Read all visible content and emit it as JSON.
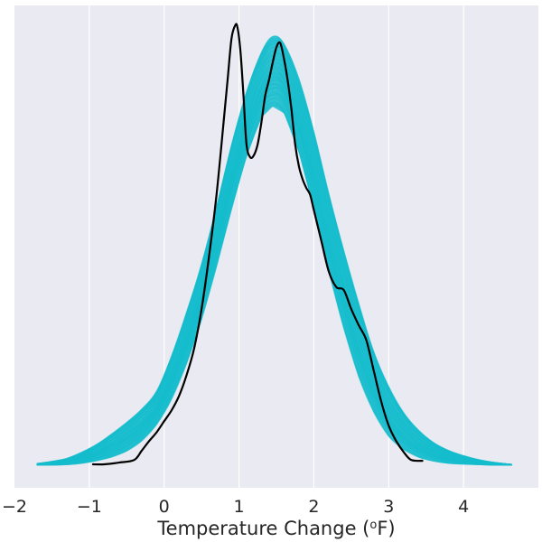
{
  "chart_data": {
    "type": "line",
    "title": "",
    "xlabel": "Temperature Change (",
    "xlabel_sup": "o",
    "xlabel_suffix": "F)",
    "ylabel": "",
    "xlim": [
      -2,
      5
    ],
    "xticks": [
      -2,
      -1,
      0,
      1,
      2,
      3,
      4
    ],
    "xtick_labels": [
      "−2",
      "−1",
      "0",
      "1",
      "2",
      "3",
      "4"
    ],
    "grid": true,
    "y_axis_shown": false,
    "colors": {
      "background": "#eaeaf2",
      "grid": "#ffffff",
      "ensemble": "#17becf",
      "observed": "#000000"
    },
    "series": [
      {
        "role": "ensemble-band",
        "n_curves": 200,
        "band_points": [
          [
            -1.7,
            0.0,
            0.004
          ],
          [
            -1.5,
            0.0,
            0.009
          ],
          [
            -1.3,
            0.001,
            0.016
          ],
          [
            -1.1,
            0.004,
            0.03
          ],
          [
            -0.9,
            0.01,
            0.048
          ],
          [
            -0.7,
            0.018,
            0.072
          ],
          [
            -0.5,
            0.032,
            0.098
          ],
          [
            -0.3,
            0.055,
            0.128
          ],
          [
            -0.1,
            0.092,
            0.17
          ],
          [
            0.1,
            0.15,
            0.25
          ],
          [
            0.3,
            0.23,
            0.35
          ],
          [
            0.5,
            0.33,
            0.46
          ],
          [
            0.7,
            0.45,
            0.59
          ],
          [
            0.9,
            0.58,
            0.73
          ],
          [
            1.1,
            0.7,
            0.85
          ],
          [
            1.3,
            0.79,
            0.94
          ],
          [
            1.45,
            0.815,
            0.975
          ],
          [
            1.6,
            0.8,
            0.96
          ],
          [
            1.8,
            0.71,
            0.88
          ],
          [
            2.0,
            0.58,
            0.76
          ],
          [
            2.2,
            0.44,
            0.62
          ],
          [
            2.4,
            0.31,
            0.49
          ],
          [
            2.6,
            0.2,
            0.37
          ],
          [
            2.8,
            0.12,
            0.26
          ],
          [
            3.0,
            0.065,
            0.18
          ],
          [
            3.2,
            0.035,
            0.12
          ],
          [
            3.4,
            0.018,
            0.08
          ],
          [
            3.6,
            0.009,
            0.052
          ],
          [
            3.8,
            0.004,
            0.034
          ],
          [
            4.0,
            0.002,
            0.022
          ],
          [
            4.2,
            0.001,
            0.013
          ],
          [
            4.4,
            0.0,
            0.007
          ],
          [
            4.65,
            0.0,
            0.002
          ]
        ]
      },
      {
        "role": "observed",
        "x": [
          -0.95,
          -0.8,
          -0.6,
          -0.4,
          -0.3,
          -0.2,
          -0.1,
          0.0,
          0.1,
          0.2,
          0.3,
          0.4,
          0.5,
          0.6,
          0.7,
          0.8,
          0.85,
          0.9,
          0.95,
          0.98,
          1.02,
          1.06,
          1.1,
          1.15,
          1.2,
          1.25,
          1.3,
          1.35,
          1.4,
          1.45,
          1.5,
          1.55,
          1.6,
          1.65,
          1.7,
          1.75,
          1.8,
          1.85,
          1.9,
          1.95,
          2.0,
          2.1,
          2.2,
          2.3,
          2.4,
          2.5,
          2.6,
          2.7,
          2.8,
          2.9,
          3.0,
          3.1,
          3.2,
          3.3,
          3.45
        ],
        "y": [
          0.002,
          0.002,
          0.006,
          0.012,
          0.033,
          0.055,
          0.075,
          0.1,
          0.125,
          0.158,
          0.205,
          0.265,
          0.355,
          0.475,
          0.615,
          0.79,
          0.88,
          0.97,
          1.0,
          0.995,
          0.94,
          0.84,
          0.73,
          0.7,
          0.705,
          0.73,
          0.78,
          0.84,
          0.875,
          0.915,
          0.95,
          0.96,
          0.925,
          0.875,
          0.81,
          0.73,
          0.68,
          0.65,
          0.63,
          0.615,
          0.58,
          0.51,
          0.44,
          0.405,
          0.398,
          0.355,
          0.318,
          0.285,
          0.215,
          0.145,
          0.09,
          0.055,
          0.03,
          0.012,
          0.01
        ]
      }
    ]
  }
}
